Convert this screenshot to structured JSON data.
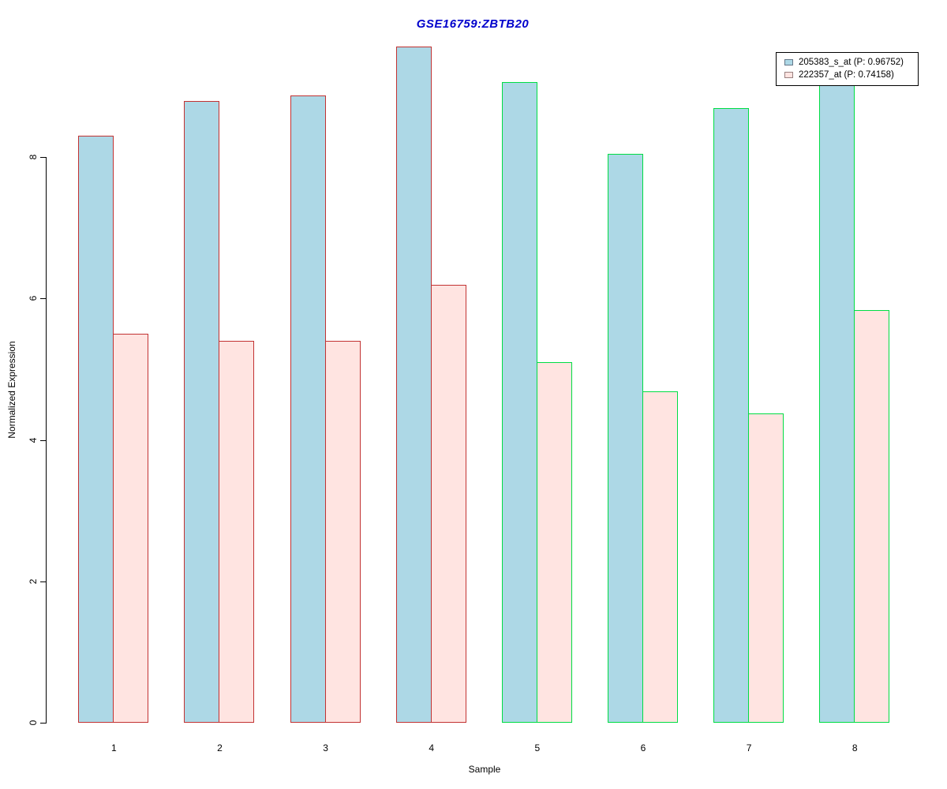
{
  "title": {
    "text": "GSE16759:ZBTB20",
    "color": "#0000CC"
  },
  "chart_data": {
    "type": "bar",
    "title": "GSE16759:ZBTB20",
    "xlabel": "Sample",
    "ylabel": "Normalized Expression",
    "ylim": [
      0,
      9.8
    ],
    "yticks": [
      0,
      2,
      4,
      6,
      8
    ],
    "categories": [
      "1",
      "2",
      "3",
      "4",
      "5",
      "6",
      "7",
      "8"
    ],
    "series": [
      {
        "name": "205383_s_at (P: 0.96752)",
        "fill": "#ADD8E6",
        "values": [
          8.3,
          8.79,
          8.87,
          9.56,
          9.06,
          8.04,
          8.69,
          9.15
        ]
      },
      {
        "name": "222357_at (P: 0.74158)",
        "fill": "#FFE4E1",
        "values": [
          5.5,
          5.4,
          5.4,
          6.19,
          5.1,
          4.69,
          4.37,
          5.84
        ]
      }
    ],
    "sample_border_colors": [
      "#C23232",
      "#C23232",
      "#C23232",
      "#C23232",
      "#00DD44",
      "#00DD44",
      "#00DD44",
      "#00DD44"
    ],
    "grid": false,
    "axis_color": "#000000",
    "legend": {
      "position": "top-right",
      "items": [
        {
          "label": "205383_s_at (P: 0.96752)",
          "fill": "#ADD8E6",
          "border": "#667788"
        },
        {
          "label": "222357_at (P: 0.74158)",
          "fill": "#FFE4E1",
          "border": "#998080"
        }
      ]
    }
  }
}
